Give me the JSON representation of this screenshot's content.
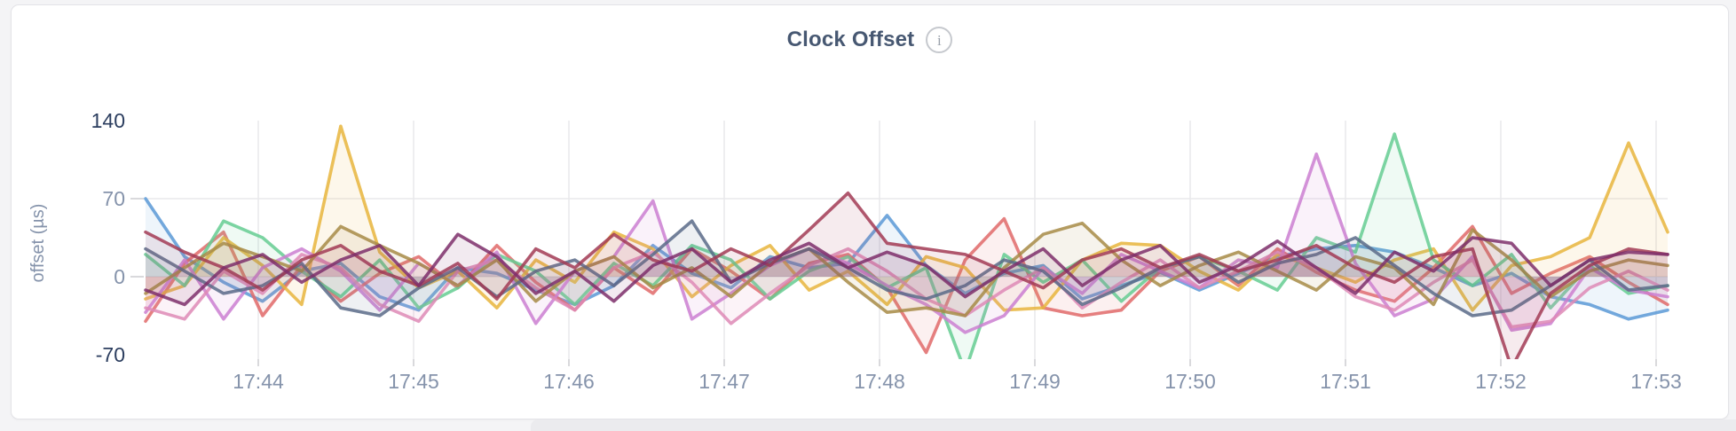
{
  "header": {
    "info_glyph": "i"
  },
  "theme": {
    "page_bg": "#f4f4f6",
    "card_bg": "#ffffff",
    "card_border": "#e3e3e7",
    "title_color": "#475872",
    "grid_color": "#e9e9ec",
    "tick_color": "#d9d9dc",
    "axis_label_muted": "#8593ab",
    "axis_label_dark": "#2c3e5f"
  },
  "chart_data": {
    "type": "line",
    "title": "Clock Offset",
    "xlabel": "",
    "ylabel": "offset (µs)",
    "ylim": [
      -74,
      146
    ],
    "grid": true,
    "legend": "none",
    "y_ticks": [
      {
        "label": "140",
        "value": 140,
        "dark": true,
        "gridline": false
      },
      {
        "label": "70",
        "value": 70,
        "dark": false,
        "gridline": true
      },
      {
        "label": "0",
        "value": 0,
        "dark": false,
        "gridline": true
      },
      {
        "label": "-70",
        "value": -70,
        "dark": true,
        "gridline": false
      }
    ],
    "x_tick_labels": [
      "17:44",
      "17:45",
      "17:46",
      "17:47",
      "17:48",
      "17:49",
      "17:50",
      "17:51",
      "17:52",
      "17:53"
    ],
    "x_range_minutes_after_1743": [
      0.27,
      10.07
    ],
    "sample_interval_seconds": 15,
    "series": [
      {
        "name": "blue",
        "color": "#5B99D6",
        "values": [
          70,
          18,
          -5,
          -22,
          5,
          12,
          -18,
          -30,
          8,
          3,
          -12,
          -25,
          -8,
          28,
          3,
          -10,
          18,
          8,
          12,
          55,
          10,
          -15,
          3,
          10,
          -20,
          -8,
          4,
          -12,
          3,
          18,
          25,
          28,
          22,
          8,
          -8,
          3,
          -18,
          -25,
          -38,
          -30
        ]
      },
      {
        "name": "coral",
        "color": "#E16A6A",
        "values": [
          -40,
          12,
          40,
          -35,
          10,
          -22,
          3,
          18,
          -10,
          28,
          -5,
          -30,
          8,
          -15,
          25,
          5,
          -20,
          12,
          20,
          -10,
          -68,
          15,
          52,
          -28,
          -35,
          -30,
          5,
          18,
          -8,
          25,
          4,
          -12,
          -22,
          8,
          45,
          -15,
          3,
          18,
          -5,
          -25
        ]
      },
      {
        "name": "yellow",
        "color": "#E7B53D",
        "values": [
          -20,
          -8,
          35,
          10,
          -25,
          135,
          22,
          -10,
          5,
          -28,
          15,
          -5,
          40,
          25,
          -18,
          10,
          28,
          -12,
          5,
          -25,
          18,
          8,
          -30,
          -28,
          15,
          30,
          28,
          5,
          -12,
          20,
          8,
          -5,
          15,
          25,
          -30,
          10,
          18,
          35,
          120,
          40
        ]
      },
      {
        "name": "green",
        "color": "#65CD92",
        "values": [
          20,
          -8,
          50,
          35,
          5,
          -18,
          15,
          -28,
          -10,
          20,
          5,
          -25,
          12,
          -8,
          28,
          15,
          -20,
          5,
          18,
          -10,
          8,
          -85,
          20,
          -5,
          15,
          -22,
          8,
          18,
          5,
          -12,
          35,
          22,
          128,
          15,
          -8,
          20,
          -28,
          10,
          -15,
          -8
        ]
      },
      {
        "name": "orchid",
        "color": "#CB7FD1",
        "values": [
          -32,
          15,
          -38,
          8,
          25,
          5,
          -30,
          12,
          -8,
          22,
          -42,
          5,
          18,
          68,
          -38,
          -15,
          10,
          25,
          12,
          -8,
          -25,
          -50,
          -35,
          8,
          -15,
          20,
          5,
          -10,
          15,
          8,
          110,
          12,
          -35,
          -20,
          18,
          -48,
          -42,
          8,
          -12,
          -18
        ]
      },
      {
        "name": "pink",
        "color": "#DE8AB6",
        "values": [
          -28,
          -38,
          5,
          -15,
          20,
          8,
          -25,
          -40,
          5,
          15,
          -10,
          -30,
          8,
          22,
          -5,
          -42,
          -15,
          10,
          25,
          5,
          -20,
          -35,
          -12,
          8,
          -28,
          -5,
          15,
          -10,
          5,
          22,
          8,
          -18,
          -30,
          -5,
          15,
          -45,
          -40,
          -10,
          5,
          -12
        ]
      },
      {
        "name": "khaki",
        "color": "#A78B46",
        "values": [
          -15,
          8,
          30,
          18,
          5,
          45,
          28,
          12,
          -8,
          15,
          -22,
          5,
          18,
          -10,
          8,
          -18,
          12,
          25,
          -5,
          -32,
          -28,
          -35,
          8,
          38,
          48,
          15,
          -8,
          10,
          22,
          5,
          -12,
          18,
          8,
          -25,
          42,
          15,
          -18,
          5,
          15,
          10
        ]
      },
      {
        "name": "slate",
        "color": "#5A6B88",
        "values": [
          25,
          5,
          -15,
          -8,
          12,
          -28,
          -35,
          -10,
          8,
          -18,
          5,
          15,
          -8,
          20,
          50,
          -5,
          12,
          25,
          8,
          -12,
          -20,
          -8,
          15,
          5,
          -25,
          -10,
          8,
          18,
          -5,
          12,
          20,
          35,
          10,
          -15,
          -35,
          -30,
          -8,
          15,
          -12,
          -8
        ]
      },
      {
        "name": "maroon",
        "color": "#A23B55",
        "values": [
          40,
          22,
          8,
          -12,
          15,
          28,
          5,
          -8,
          12,
          -20,
          25,
          8,
          38,
          15,
          5,
          25,
          10,
          42,
          75,
          30,
          25,
          20,
          5,
          -10,
          15,
          25,
          8,
          20,
          5,
          15,
          28,
          8,
          -5,
          18,
          25,
          -82,
          -15,
          10,
          25,
          20
        ]
      },
      {
        "name": "plum",
        "color": "#7E2F6B",
        "values": [
          -12,
          -25,
          8,
          20,
          -5,
          15,
          28,
          -8,
          38,
          18,
          -15,
          5,
          -22,
          10,
          25,
          -5,
          15,
          30,
          8,
          22,
          10,
          -18,
          5,
          25,
          -8,
          15,
          28,
          -5,
          10,
          32,
          8,
          -15,
          22,
          5,
          35,
          30,
          -8,
          15,
          22,
          20
        ]
      }
    ]
  }
}
